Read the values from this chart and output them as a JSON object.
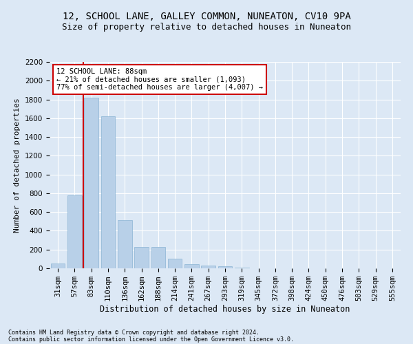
{
  "title1": "12, SCHOOL LANE, GALLEY COMMON, NUNEATON, CV10 9PA",
  "title2": "Size of property relative to detached houses in Nuneaton",
  "xlabel": "Distribution of detached houses by size in Nuneaton",
  "ylabel": "Number of detached properties",
  "footnote1": "Contains HM Land Registry data © Crown copyright and database right 2024.",
  "footnote2": "Contains public sector information licensed under the Open Government Licence v3.0.",
  "categories": [
    "31sqm",
    "57sqm",
    "83sqm",
    "110sqm",
    "136sqm",
    "162sqm",
    "188sqm",
    "214sqm",
    "241sqm",
    "267sqm",
    "293sqm",
    "319sqm",
    "345sqm",
    "372sqm",
    "398sqm",
    "424sqm",
    "450sqm",
    "476sqm",
    "503sqm",
    "529sqm",
    "555sqm"
  ],
  "values": [
    50,
    780,
    1820,
    1620,
    510,
    230,
    230,
    100,
    45,
    30,
    20,
    5,
    0,
    0,
    0,
    0,
    0,
    0,
    0,
    0,
    0
  ],
  "bar_color": "#b8d0e8",
  "bar_edge_color": "#8ab4d4",
  "vline_color": "#cc0000",
  "vline_pos": 2.0,
  "annotation_text": "12 SCHOOL LANE: 88sqm\n← 21% of detached houses are smaller (1,093)\n77% of semi-detached houses are larger (4,007) →",
  "annotation_box_facecolor": "white",
  "annotation_box_edgecolor": "#cc0000",
  "ylim": [
    0,
    2200
  ],
  "yticks": [
    0,
    200,
    400,
    600,
    800,
    1000,
    1200,
    1400,
    1600,
    1800,
    2000,
    2200
  ],
  "background_color": "#dce8f5",
  "plot_bg_color": "#dce8f5",
  "grid_color": "white",
  "title1_fontsize": 10,
  "title2_fontsize": 9,
  "xlabel_fontsize": 8.5,
  "ylabel_fontsize": 8,
  "tick_fontsize": 7.5,
  "annotation_fontsize": 7.5,
  "footnote_fontsize": 6
}
